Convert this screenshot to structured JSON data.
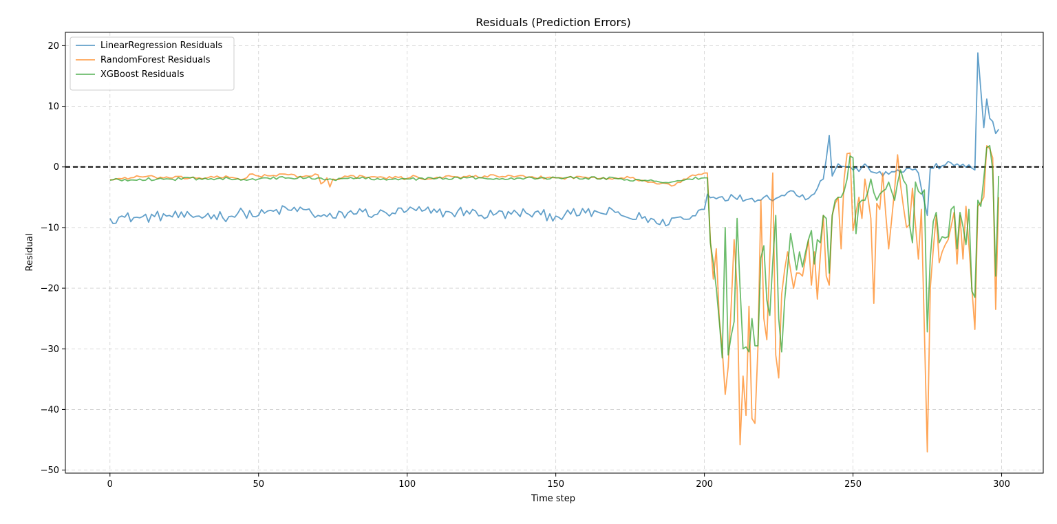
{
  "chart_data": {
    "type": "line",
    "title": "Residuals (Prediction Errors)",
    "xlabel": "Time step",
    "ylabel": "Residual",
    "xlim": [
      -15,
      314
    ],
    "ylim": [
      -50.5,
      22.2
    ],
    "xticks": [
      0,
      50,
      100,
      150,
      200,
      250,
      300
    ],
    "yticks": [
      -50,
      -40,
      -30,
      -20,
      -10,
      0,
      10,
      20
    ],
    "grid": true,
    "legend_position": "top-left",
    "reference_line": {
      "y": 0,
      "style": "dashed",
      "color": "#000000"
    },
    "x_range": [
      0,
      299
    ],
    "series": [
      {
        "name": "LinearRegression Residuals",
        "color": "#1f77b4",
        "keypoints": [
          [
            0,
            -8.5
          ],
          [
            5,
            -8.3
          ],
          [
            10,
            -8.4
          ],
          [
            15,
            -8.2
          ],
          [
            20,
            -8.0
          ],
          [
            25,
            -8.3
          ],
          [
            30,
            -8.1
          ],
          [
            35,
            -7.9
          ],
          [
            40,
            -8.2
          ],
          [
            45,
            -7.5
          ],
          [
            50,
            -8.0
          ],
          [
            55,
            -7.3
          ],
          [
            60,
            -7.1
          ],
          [
            65,
            -7.0
          ],
          [
            70,
            -8.0
          ],
          [
            75,
            -8.4
          ],
          [
            80,
            -7.6
          ],
          [
            85,
            -7.4
          ],
          [
            90,
            -7.8
          ],
          [
            95,
            -7.6
          ],
          [
            100,
            -7.2
          ],
          [
            105,
            -7.3
          ],
          [
            110,
            -7.5
          ],
          [
            115,
            -7.6
          ],
          [
            120,
            -7.2
          ],
          [
            125,
            -8.0
          ],
          [
            130,
            -7.7
          ],
          [
            135,
            -7.8
          ],
          [
            140,
            -7.6
          ],
          [
            145,
            -7.9
          ],
          [
            150,
            -8.1
          ],
          [
            155,
            -7.8
          ],
          [
            160,
            -7.6
          ],
          [
            165,
            -7.6
          ],
          [
            170,
            -7.5
          ],
          [
            175,
            -8.5
          ],
          [
            180,
            -8.2
          ],
          [
            185,
            -9.5
          ],
          [
            190,
            -8.4
          ],
          [
            195,
            -8.6
          ],
          [
            199,
            -7.0
          ],
          [
            200,
            -7.0
          ],
          [
            201,
            -4.5
          ],
          [
            205,
            -5.0
          ],
          [
            210,
            -5.0
          ],
          [
            215,
            -5.3
          ],
          [
            220,
            -5.0
          ],
          [
            225,
            -5.0
          ],
          [
            230,
            -4.0
          ],
          [
            235,
            -5.2
          ],
          [
            240,
            -2.0
          ],
          [
            242,
            5.2
          ],
          [
            243,
            -1.5
          ],
          [
            245,
            0.5
          ],
          [
            248,
            0.0
          ],
          [
            250,
            -0.5
          ],
          [
            255,
            0.0
          ],
          [
            260,
            -1.5
          ],
          [
            265,
            -0.5
          ],
          [
            270,
            -0.5
          ],
          [
            272,
            -1.0
          ],
          [
            275,
            -8.0
          ],
          [
            276,
            -0.2
          ],
          [
            280,
            0.2
          ],
          [
            285,
            0.5
          ],
          [
            290,
            -0.2
          ],
          [
            291,
            -0.5
          ],
          [
            292,
            18.8
          ],
          [
            294,
            6.5
          ],
          [
            295,
            11.2
          ],
          [
            296,
            8.0
          ],
          [
            297,
            7.5
          ],
          [
            298,
            5.5
          ],
          [
            299,
            6.2
          ]
        ]
      },
      {
        "name": "RandomForest Residuals",
        "color": "#ff7f0e",
        "keypoints": [
          [
            0,
            -2.1
          ],
          [
            10,
            -1.6
          ],
          [
            20,
            -1.8
          ],
          [
            30,
            -1.8
          ],
          [
            40,
            -1.7
          ],
          [
            45,
            -2.0
          ],
          [
            47,
            -1.2
          ],
          [
            50,
            -1.5
          ],
          [
            55,
            -1.4
          ],
          [
            60,
            -1.3
          ],
          [
            65,
            -1.6
          ],
          [
            70,
            -1.3
          ],
          [
            71,
            -2.8
          ],
          [
            73,
            -1.8
          ],
          [
            74,
            -3.3
          ],
          [
            75,
            -2.0
          ],
          [
            80,
            -1.6
          ],
          [
            90,
            -1.7
          ],
          [
            100,
            -1.9
          ],
          [
            102,
            -1.4
          ],
          [
            105,
            -2.0
          ],
          [
            110,
            -1.7
          ],
          [
            120,
            -1.6
          ],
          [
            130,
            -1.5
          ],
          [
            140,
            -1.7
          ],
          [
            150,
            -1.8
          ],
          [
            160,
            -1.7
          ],
          [
            170,
            -1.8
          ],
          [
            175,
            -1.8
          ],
          [
            180,
            -2.3
          ],
          [
            185,
            -2.8
          ],
          [
            190,
            -3.0
          ],
          [
            195,
            -1.6
          ],
          [
            200,
            -1.0
          ],
          [
            201,
            -1.0
          ],
          [
            202,
            -12.0
          ],
          [
            203,
            -18.5
          ],
          [
            204,
            -13.5
          ],
          [
            205,
            -25.0
          ],
          [
            206,
            -30.0
          ],
          [
            207,
            -37.5
          ],
          [
            208,
            -33.0
          ],
          [
            210,
            -12.0
          ],
          [
            211,
            -20.0
          ],
          [
            212,
            -45.8
          ],
          [
            213,
            -34.5
          ],
          [
            214,
            -41.0
          ],
          [
            215,
            -23.0
          ],
          [
            216,
            -41.5
          ],
          [
            217,
            -42.3
          ],
          [
            218,
            -30.0
          ],
          [
            219,
            -5.5
          ],
          [
            220,
            -25.0
          ],
          [
            221,
            -28.5
          ],
          [
            223,
            -1.0
          ],
          [
            224,
            -31.0
          ],
          [
            225,
            -34.8
          ],
          [
            226,
            -21.0
          ],
          [
            228,
            -14.0
          ],
          [
            230,
            -20.0
          ],
          [
            231,
            -17.5
          ],
          [
            233,
            -18.0
          ],
          [
            235,
            -12.0
          ],
          [
            236,
            -19.5
          ],
          [
            237,
            -14.0
          ],
          [
            238,
            -21.8
          ],
          [
            240,
            -8.0
          ],
          [
            241,
            -18.0
          ],
          [
            242,
            -19.5
          ],
          [
            243,
            -8.0
          ],
          [
            245,
            -5.0
          ],
          [
            246,
            -13.5
          ],
          [
            247,
            -2.0
          ],
          [
            248,
            2.2
          ],
          [
            249,
            2.3
          ],
          [
            250,
            -10.5
          ],
          [
            252,
            -5.0
          ],
          [
            253,
            -8.5
          ],
          [
            254,
            -2.0
          ],
          [
            256,
            -8.5
          ],
          [
            257,
            -22.5
          ],
          [
            258,
            -6.0
          ],
          [
            259,
            -7.0
          ],
          [
            260,
            -1.0
          ],
          [
            262,
            -13.5
          ],
          [
            265,
            2.0
          ],
          [
            266,
            -3.0
          ],
          [
            268,
            -10.0
          ],
          [
            269,
            -9.5
          ],
          [
            270,
            -3.5
          ],
          [
            272,
            -15.2
          ],
          [
            273,
            -7.0
          ],
          [
            275,
            -47.0
          ],
          [
            276,
            -20.0
          ],
          [
            278,
            -8.0
          ],
          [
            279,
            -15.8
          ],
          [
            280,
            -14.0
          ],
          [
            282,
            -12.0
          ],
          [
            284,
            -7.5
          ],
          [
            285,
            -16.0
          ],
          [
            286,
            -8.0
          ],
          [
            287,
            -15.2
          ],
          [
            288,
            -6.5
          ],
          [
            290,
            -20.0
          ],
          [
            291,
            -26.8
          ],
          [
            292,
            -6.5
          ],
          [
            294,
            -5.0
          ],
          [
            295,
            3.5
          ],
          [
            296,
            3.0
          ],
          [
            297,
            1.5
          ],
          [
            298,
            -23.5
          ],
          [
            299,
            -5.0
          ]
        ]
      },
      {
        "name": "XGBoost Residuals",
        "color": "#2ca02c",
        "keypoints": [
          [
            0,
            -2.2
          ],
          [
            10,
            -2.0
          ],
          [
            20,
            -2.0
          ],
          [
            30,
            -1.9
          ],
          [
            40,
            -1.9
          ],
          [
            50,
            -2.0
          ],
          [
            60,
            -1.8
          ],
          [
            70,
            -1.8
          ],
          [
            75,
            -2.1
          ],
          [
            80,
            -1.9
          ],
          [
            90,
            -1.9
          ],
          [
            100,
            -2.0
          ],
          [
            110,
            -1.9
          ],
          [
            120,
            -1.8
          ],
          [
            130,
            -1.9
          ],
          [
            140,
            -1.8
          ],
          [
            150,
            -1.8
          ],
          [
            160,
            -1.8
          ],
          [
            170,
            -1.9
          ],
          [
            180,
            -2.2
          ],
          [
            185,
            -2.5
          ],
          [
            190,
            -2.4
          ],
          [
            195,
            -2.0
          ],
          [
            200,
            -1.8
          ],
          [
            201,
            -1.8
          ],
          [
            202,
            -12.5
          ],
          [
            204,
            -20.0
          ],
          [
            206,
            -31.5
          ],
          [
            207,
            -10.0
          ],
          [
            208,
            -31.0
          ],
          [
            210,
            -25.5
          ],
          [
            211,
            -8.5
          ],
          [
            212,
            -20.0
          ],
          [
            213,
            -30.0
          ],
          [
            215,
            -30.5
          ],
          [
            216,
            -25.0
          ],
          [
            217,
            -29.5
          ],
          [
            218,
            -29.5
          ],
          [
            219,
            -15.0
          ],
          [
            220,
            -13.0
          ],
          [
            221,
            -22.0
          ],
          [
            222,
            -24.5
          ],
          [
            224,
            -8.0
          ],
          [
            225,
            -25.0
          ],
          [
            226,
            -30.5
          ],
          [
            227,
            -22.0
          ],
          [
            229,
            -11.0
          ],
          [
            231,
            -17.0
          ],
          [
            232,
            -14.0
          ],
          [
            233,
            -16.5
          ],
          [
            235,
            -12.0
          ],
          [
            236,
            -10.5
          ],
          [
            237,
            -16.0
          ],
          [
            238,
            -12.0
          ],
          [
            239,
            -12.5
          ],
          [
            240,
            -8.0
          ],
          [
            241,
            -8.5
          ],
          [
            242,
            -17.5
          ],
          [
            243,
            -8.0
          ],
          [
            244,
            -5.5
          ],
          [
            246,
            -5.0
          ],
          [
            248,
            -2.0
          ],
          [
            249,
            1.8
          ],
          [
            250,
            1.5
          ],
          [
            251,
            -11.0
          ],
          [
            252,
            -6.0
          ],
          [
            254,
            -5.5
          ],
          [
            256,
            -2.0
          ],
          [
            258,
            -5.5
          ],
          [
            259,
            -4.5
          ],
          [
            260,
            -4.0
          ],
          [
            262,
            -2.5
          ],
          [
            264,
            -5.5
          ],
          [
            266,
            -0.5
          ],
          [
            268,
            -3.0
          ],
          [
            269,
            -9.5
          ],
          [
            270,
            -12.5
          ],
          [
            271,
            -2.5
          ],
          [
            273,
            -4.5
          ],
          [
            274,
            -3.8
          ],
          [
            275,
            -27.2
          ],
          [
            276,
            -15.0
          ],
          [
            277,
            -9.0
          ],
          [
            278,
            -7.5
          ],
          [
            279,
            -12.5
          ],
          [
            280,
            -11.5
          ],
          [
            282,
            -11.5
          ],
          [
            283,
            -7.0
          ],
          [
            284,
            -6.5
          ],
          [
            285,
            -13.5
          ],
          [
            286,
            -7.5
          ],
          [
            288,
            -12.8
          ],
          [
            289,
            -7.0
          ],
          [
            290,
            -20.5
          ],
          [
            291,
            -21.5
          ],
          [
            292,
            -5.5
          ],
          [
            293,
            -6.5
          ],
          [
            295,
            3.2
          ],
          [
            296,
            3.5
          ],
          [
            297,
            -0.5
          ],
          [
            298,
            -18.0
          ],
          [
            299,
            -1.5
          ]
        ]
      }
    ]
  }
}
